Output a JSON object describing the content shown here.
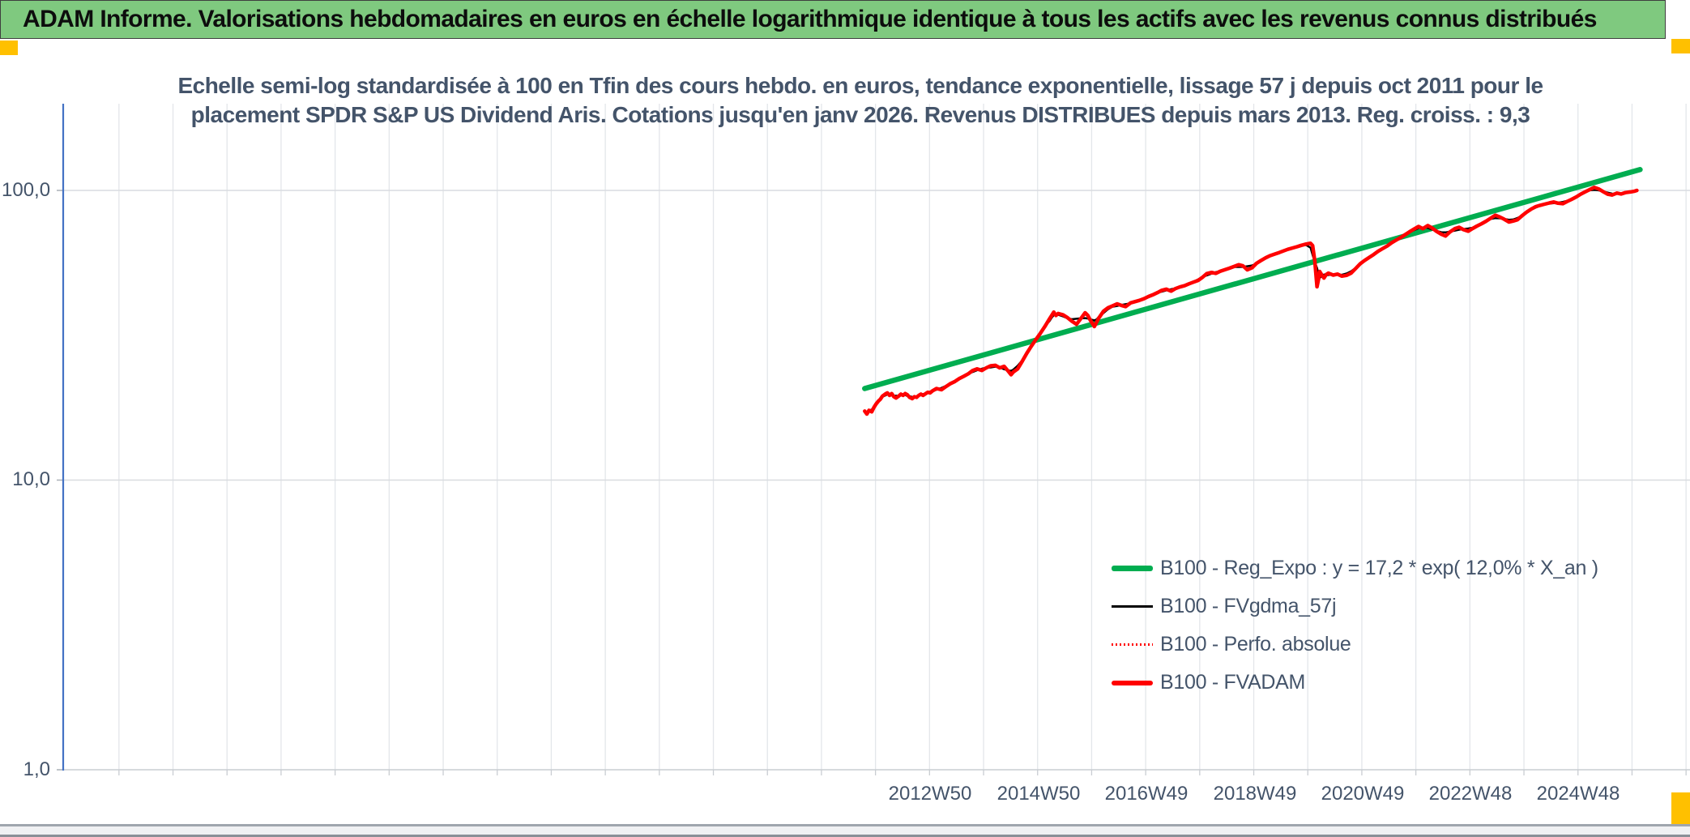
{
  "banner": {
    "title": "ADAM Informe. Valorisations hebdomadaires en euros en échelle logarithmique identique à tous les actifs avec les revenus connus distribués",
    "bg_color": "#7FC97F",
    "accent_color": "#FFC000"
  },
  "chart": {
    "title_line1": "Echelle semi-log standardisée à 100 en Tfin des cours hebdo. en euros, tendance exponentielle, lissage 57 j depuis oct 2011 pour le",
    "title_line2": "placement SPDR S&P US Dividend Aris. Cotations jusqu'en janv 2026. Revenus DISTRIBUES depuis mars 2013. Reg. croiss. : 9,3",
    "y_tick_labels": [
      "100,0",
      "10,0",
      "1,0"
    ],
    "x_tick_labels": [
      "2012W50",
      "2014W50",
      "2016W49",
      "2018W49",
      "2020W49",
      "2022W48",
      "2024W48"
    ],
    "axis_color": "#4472C4",
    "label_color": "#44546A"
  },
  "legend": {
    "items": [
      {
        "label": "B100 - Reg_Expo : y = 17,2 * exp( 12,0% *  X_an )",
        "color": "#00AD50",
        "style": "solid-thick"
      },
      {
        "label": "B100 - FVgdma_57j",
        "color": "#000000",
        "style": "solid-thin"
      },
      {
        "label": "B100 - Perfo. absolue",
        "color": "#FF0000",
        "style": "dotted"
      },
      {
        "label": "B100 - FVADAM",
        "color": "#FF0000",
        "style": "solid-thick"
      }
    ]
  },
  "chart_data": {
    "type": "line",
    "title": "Echelle semi-log standardisée à 100 en Tfin des cours hebdo. en euros, tendance exponentielle, lissage 57 j depuis oct 2011 pour le placement SPDR S&P US Dividend Aris. Cotations jusqu'en janv 2026. Revenus DISTRIBUES depuis mars 2013. Reg. croiss. : 9,3",
    "x_axis": {
      "unit": "year-week",
      "tick_labels": [
        "2012W50",
        "2014W50",
        "2016W49",
        "2018W49",
        "2020W49",
        "2022W48",
        "2024W48"
      ],
      "tick_years": [
        2012.96,
        2014.96,
        2016.94,
        2018.94,
        2020.94,
        2022.92,
        2024.92
      ],
      "gridline_base_year": 2012.95,
      "gridline_step_years": 1,
      "range_years": [
        1997.0,
        2026.9
      ],
      "grid": true
    },
    "y_axis": {
      "scale": "log10",
      "ticks": [
        1,
        10,
        100
      ],
      "tick_labels": [
        "1,0",
        "10,0",
        "100,0"
      ],
      "range": [
        1,
        200
      ],
      "grid": true
    },
    "legend_position": "inside-right-bottom",
    "series": [
      {
        "name": "B100 - Reg_Expo",
        "formula": "y = 17,2 * exp( 12,0% *  X_an )",
        "color": "#00AD50",
        "style": "solid",
        "width": 6.5,
        "points": [
          [
            2011.75,
            20.7
          ],
          [
            2026.1,
            118
          ]
        ]
      },
      {
        "name": "B100 - FVgdma_57j",
        "color": "#000000",
        "style": "solid",
        "width": 2.5,
        "derived": "57-day moving average of B100 - FVADAM"
      },
      {
        "name": "B100 - Perfo. absolue",
        "color": "#FF0000",
        "style": "dotted",
        "width": 2,
        "same_as": "B100 - FVADAM"
      },
      {
        "name": "B100 - FVADAM",
        "color": "#FF0000",
        "style": "solid",
        "width": 4.5,
        "points": [
          [
            2011.75,
            17.3
          ],
          [
            2011.79,
            16.9
          ],
          [
            2011.83,
            17.4
          ],
          [
            2011.88,
            17.2
          ],
          [
            2011.92,
            17.8
          ],
          [
            2011.96,
            18.3
          ],
          [
            2012.0,
            18.7
          ],
          [
            2012.04,
            19.0
          ],
          [
            2012.08,
            19.5
          ],
          [
            2012.13,
            19.8
          ],
          [
            2012.17,
            20.0
          ],
          [
            2012.21,
            19.6
          ],
          [
            2012.25,
            19.9
          ],
          [
            2012.29,
            19.4
          ],
          [
            2012.33,
            19.2
          ],
          [
            2012.38,
            19.5
          ],
          [
            2012.42,
            19.8
          ],
          [
            2012.46,
            19.6
          ],
          [
            2012.5,
            19.9
          ],
          [
            2012.54,
            19.7
          ],
          [
            2012.58,
            19.3
          ],
          [
            2012.63,
            19.1
          ],
          [
            2012.67,
            19.4
          ],
          [
            2012.71,
            19.3
          ],
          [
            2012.75,
            19.6
          ],
          [
            2012.79,
            19.8
          ],
          [
            2012.83,
            19.6
          ],
          [
            2012.88,
            19.9
          ],
          [
            2012.92,
            20.1
          ],
          [
            2012.96,
            20.0
          ],
          [
            2013.0,
            20.3
          ],
          [
            2013.08,
            20.7
          ],
          [
            2013.17,
            20.5
          ],
          [
            2013.25,
            21.0
          ],
          [
            2013.33,
            21.5
          ],
          [
            2013.42,
            21.9
          ],
          [
            2013.5,
            22.4
          ],
          [
            2013.58,
            22.8
          ],
          [
            2013.67,
            23.3
          ],
          [
            2013.75,
            23.9
          ],
          [
            2013.83,
            24.2
          ],
          [
            2013.92,
            23.9
          ],
          [
            2014.0,
            24.4
          ],
          [
            2014.08,
            24.8
          ],
          [
            2014.17,
            24.9
          ],
          [
            2014.25,
            24.4
          ],
          [
            2014.33,
            24.7
          ],
          [
            2014.42,
            23.6
          ],
          [
            2014.46,
            23.1
          ],
          [
            2014.5,
            23.6
          ],
          [
            2014.58,
            24.2
          ],
          [
            2014.67,
            25.8
          ],
          [
            2014.75,
            27.4
          ],
          [
            2014.83,
            28.9
          ],
          [
            2014.92,
            30.6
          ],
          [
            2015.0,
            32.1
          ],
          [
            2015.08,
            33.8
          ],
          [
            2015.17,
            36.0
          ],
          [
            2015.21,
            37.0
          ],
          [
            2015.25,
            38.0
          ],
          [
            2015.29,
            37.0
          ],
          [
            2015.33,
            37.6
          ],
          [
            2015.42,
            37.2
          ],
          [
            2015.5,
            36.4
          ],
          [
            2015.58,
            35.4
          ],
          [
            2015.67,
            34.5
          ],
          [
            2015.75,
            36.1
          ],
          [
            2015.83,
            37.8
          ],
          [
            2015.88,
            37.0
          ],
          [
            2015.92,
            35.8
          ],
          [
            2016.0,
            33.9
          ],
          [
            2016.04,
            35.0
          ],
          [
            2016.08,
            36.2
          ],
          [
            2016.17,
            38.3
          ],
          [
            2016.25,
            39.3
          ],
          [
            2016.33,
            39.9
          ],
          [
            2016.42,
            40.6
          ],
          [
            2016.5,
            40.1
          ],
          [
            2016.58,
            39.7
          ],
          [
            2016.67,
            40.9
          ],
          [
            2016.75,
            41.3
          ],
          [
            2016.83,
            41.7
          ],
          [
            2016.92,
            42.3
          ],
          [
            2017.0,
            43.0
          ],
          [
            2017.08,
            43.6
          ],
          [
            2017.17,
            44.4
          ],
          [
            2017.25,
            45.2
          ],
          [
            2017.33,
            45.6
          ],
          [
            2017.42,
            44.9
          ],
          [
            2017.5,
            45.8
          ],
          [
            2017.58,
            46.4
          ],
          [
            2017.67,
            46.9
          ],
          [
            2017.75,
            47.6
          ],
          [
            2017.83,
            48.2
          ],
          [
            2017.92,
            48.9
          ],
          [
            2018.0,
            50.1
          ],
          [
            2018.08,
            51.6
          ],
          [
            2018.17,
            52.1
          ],
          [
            2018.25,
            51.7
          ],
          [
            2018.33,
            52.6
          ],
          [
            2018.42,
            53.3
          ],
          [
            2018.5,
            53.9
          ],
          [
            2018.58,
            54.6
          ],
          [
            2018.67,
            55.4
          ],
          [
            2018.75,
            54.9
          ],
          [
            2018.83,
            53.2
          ],
          [
            2018.92,
            54.1
          ],
          [
            2019.0,
            56.0
          ],
          [
            2019.08,
            57.2
          ],
          [
            2019.17,
            58.5
          ],
          [
            2019.25,
            59.5
          ],
          [
            2019.33,
            60.2
          ],
          [
            2019.42,
            61.0
          ],
          [
            2019.5,
            61.8
          ],
          [
            2019.58,
            62.6
          ],
          [
            2019.67,
            63.3
          ],
          [
            2019.75,
            63.9
          ],
          [
            2019.83,
            64.6
          ],
          [
            2019.92,
            65.3
          ],
          [
            2020.0,
            65.7
          ],
          [
            2020.04,
            64.5
          ],
          [
            2020.08,
            57.0
          ],
          [
            2020.12,
            46.5
          ],
          [
            2020.15,
            49.5
          ],
          [
            2020.17,
            52.5
          ],
          [
            2020.21,
            51.0
          ],
          [
            2020.25,
            49.8
          ],
          [
            2020.29,
            51.2
          ],
          [
            2020.33,
            51.8
          ],
          [
            2020.42,
            51.0
          ],
          [
            2020.5,
            51.4
          ],
          [
            2020.58,
            50.6
          ],
          [
            2020.67,
            50.9
          ],
          [
            2020.75,
            51.8
          ],
          [
            2020.83,
            53.6
          ],
          [
            2020.92,
            55.8
          ],
          [
            2021.0,
            57.3
          ],
          [
            2021.08,
            58.6
          ],
          [
            2021.17,
            60.1
          ],
          [
            2021.25,
            61.6
          ],
          [
            2021.33,
            62.9
          ],
          [
            2021.42,
            64.3
          ],
          [
            2021.5,
            65.9
          ],
          [
            2021.58,
            67.3
          ],
          [
            2021.67,
            68.8
          ],
          [
            2021.75,
            70.3
          ],
          [
            2021.83,
            71.9
          ],
          [
            2021.92,
            73.6
          ],
          [
            2022.0,
            75.1
          ],
          [
            2022.08,
            73.8
          ],
          [
            2022.17,
            75.6
          ],
          [
            2022.25,
            74.2
          ],
          [
            2022.33,
            72.3
          ],
          [
            2022.42,
            70.6
          ],
          [
            2022.5,
            69.6
          ],
          [
            2022.58,
            71.9
          ],
          [
            2022.67,
            73.8
          ],
          [
            2022.75,
            74.6
          ],
          [
            2022.83,
            73.2
          ],
          [
            2022.92,
            72.3
          ],
          [
            2023.0,
            73.9
          ],
          [
            2023.08,
            75.3
          ],
          [
            2023.17,
            76.8
          ],
          [
            2023.25,
            78.3
          ],
          [
            2023.33,
            80.1
          ],
          [
            2023.42,
            82.1
          ],
          [
            2023.5,
            81.0
          ],
          [
            2023.58,
            79.6
          ],
          [
            2023.67,
            77.8
          ],
          [
            2023.75,
            78.4
          ],
          [
            2023.83,
            79.2
          ],
          [
            2023.92,
            81.9
          ],
          [
            2024.0,
            84.2
          ],
          [
            2024.08,
            86.1
          ],
          [
            2024.17,
            87.9
          ],
          [
            2024.25,
            88.8
          ],
          [
            2024.33,
            89.6
          ],
          [
            2024.42,
            90.5
          ],
          [
            2024.5,
            91.2
          ],
          [
            2024.58,
            90.3
          ],
          [
            2024.67,
            90.0
          ],
          [
            2024.75,
            91.6
          ],
          [
            2024.83,
            93.1
          ],
          [
            2024.92,
            95.0
          ],
          [
            2025.0,
            97.1
          ],
          [
            2025.08,
            98.8
          ],
          [
            2025.17,
            100.7
          ],
          [
            2025.25,
            102.4
          ],
          [
            2025.33,
            101.2
          ],
          [
            2025.42,
            98.9
          ],
          [
            2025.5,
            97.0
          ],
          [
            2025.58,
            96.4
          ],
          [
            2025.67,
            97.9
          ],
          [
            2025.75,
            97.2
          ],
          [
            2025.83,
            98.3
          ],
          [
            2025.92,
            98.8
          ],
          [
            2026.0,
            99.4
          ],
          [
            2026.04,
            100.0
          ]
        ]
      }
    ]
  }
}
